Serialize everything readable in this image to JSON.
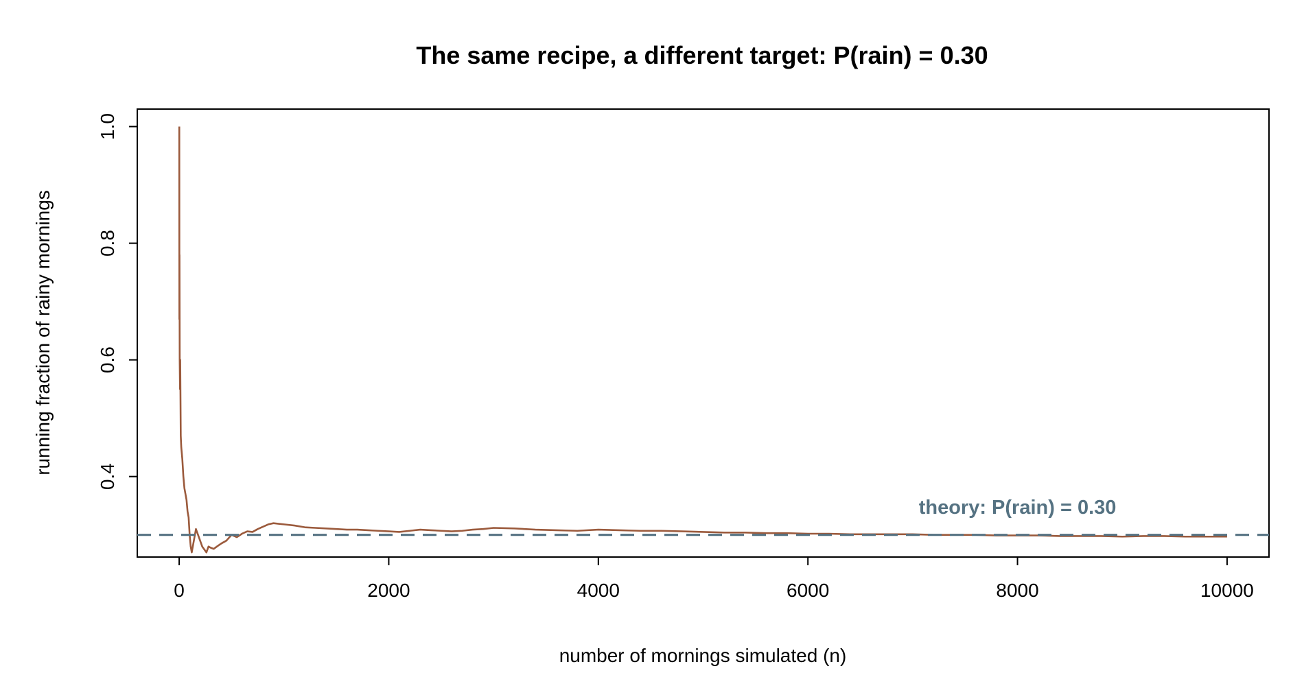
{
  "chart_data": {
    "type": "line",
    "title": "The same recipe, a different target: P(rain) = 0.30",
    "xlabel": "number of mornings simulated (n)",
    "ylabel": "running fraction of rainy mornings",
    "xlim": [
      -400,
      10400
    ],
    "ylim": [
      0.262,
      1.03
    ],
    "xticks": [
      0,
      2000,
      4000,
      6000,
      8000,
      10000
    ],
    "xtick_labels": [
      "0",
      "2000",
      "4000",
      "6000",
      "8000",
      "10000"
    ],
    "yticks": [
      0.4,
      0.6,
      0.8,
      1.0
    ],
    "ytick_labels": [
      "0.4",
      "0.6",
      "0.8",
      "1.0"
    ],
    "grid": false,
    "series": [
      {
        "color": "#9B5A3C",
        "x": [
          1,
          2,
          3,
          5,
          8,
          10,
          15,
          20,
          25,
          30,
          40,
          50,
          60,
          70,
          80,
          90,
          100,
          110,
          120,
          130,
          140,
          150,
          160,
          170,
          180,
          200,
          220,
          240,
          260,
          280,
          300,
          330,
          360,
          400,
          450,
          500,
          550,
          600,
          650,
          700,
          750,
          800,
          850,
          900,
          950,
          1000,
          1100,
          1200,
          1300,
          1400,
          1500,
          1600,
          1700,
          1800,
          1900,
          2000,
          2100,
          2200,
          2300,
          2400,
          2500,
          2600,
          2700,
          2800,
          2900,
          3000,
          3200,
          3400,
          3600,
          3800,
          4000,
          4200,
          4400,
          4600,
          4800,
          5000,
          5200,
          5400,
          5600,
          5800,
          6000,
          6200,
          6400,
          6600,
          6800,
          7000,
          7200,
          7400,
          7600,
          7800,
          8000,
          8200,
          8400,
          8600,
          8800,
          9000,
          9200,
          9400,
          9600,
          9800,
          10000
        ],
        "y": [
          1.0,
          0.67,
          0.78,
          0.6,
          0.55,
          0.6,
          0.47,
          0.45,
          0.44,
          0.43,
          0.4,
          0.38,
          0.37,
          0.36,
          0.34,
          0.33,
          0.3,
          0.28,
          0.27,
          0.28,
          0.29,
          0.3,
          0.31,
          0.305,
          0.3,
          0.29,
          0.28,
          0.275,
          0.27,
          0.28,
          0.278,
          0.276,
          0.28,
          0.285,
          0.29,
          0.3,
          0.296,
          0.302,
          0.306,
          0.305,
          0.31,
          0.314,
          0.318,
          0.32,
          0.319,
          0.318,
          0.316,
          0.313,
          0.312,
          0.311,
          0.31,
          0.309,
          0.309,
          0.308,
          0.307,
          0.306,
          0.305,
          0.307,
          0.309,
          0.308,
          0.307,
          0.306,
          0.307,
          0.309,
          0.31,
          0.312,
          0.311,
          0.309,
          0.308,
          0.307,
          0.309,
          0.308,
          0.307,
          0.307,
          0.306,
          0.305,
          0.304,
          0.304,
          0.303,
          0.303,
          0.302,
          0.302,
          0.301,
          0.301,
          0.301,
          0.301,
          0.3,
          0.3,
          0.3,
          0.299,
          0.299,
          0.299,
          0.298,
          0.298,
          0.298,
          0.297,
          0.298,
          0.298,
          0.297,
          0.297,
          0.297
        ]
      }
    ],
    "reference_line": {
      "y": 0.3,
      "color": "#557282",
      "style": "dashed",
      "label": "theory: P(rain) = 0.30",
      "label_x": 8000,
      "label_y": 0.336
    }
  }
}
